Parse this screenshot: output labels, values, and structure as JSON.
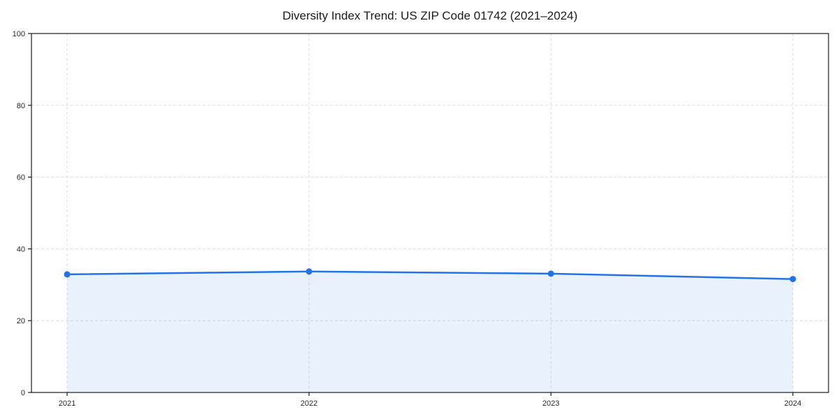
{
  "figure": {
    "title": "Diversity Index Trend: US ZIP Code 01742 (2021–2024)"
  },
  "chart_data": {
    "type": "area",
    "title": "Diversity Index Trend: US ZIP Code 01742 (2021–2024)",
    "categories": [
      "2021",
      "2022",
      "2023",
      "2024"
    ],
    "series": [
      {
        "name": "Diversity Index",
        "values": [
          32.9,
          33.7,
          33.1,
          31.6
        ]
      }
    ],
    "xlabel": "",
    "ylabel": "",
    "ylim": [
      0,
      100
    ],
    "yticks": [
      0,
      20,
      40,
      60,
      80,
      100
    ],
    "grid": true,
    "grid_style": "dashed",
    "legend": "none",
    "colors": {
      "line": "#2273e6",
      "marker": "#2273e6",
      "fill": "#2273e6",
      "fill_opacity": 0.1,
      "gridline": "#dedede",
      "spine": "#1a1a1a",
      "tick_text": "#262626",
      "background": "#ffffff"
    }
  }
}
